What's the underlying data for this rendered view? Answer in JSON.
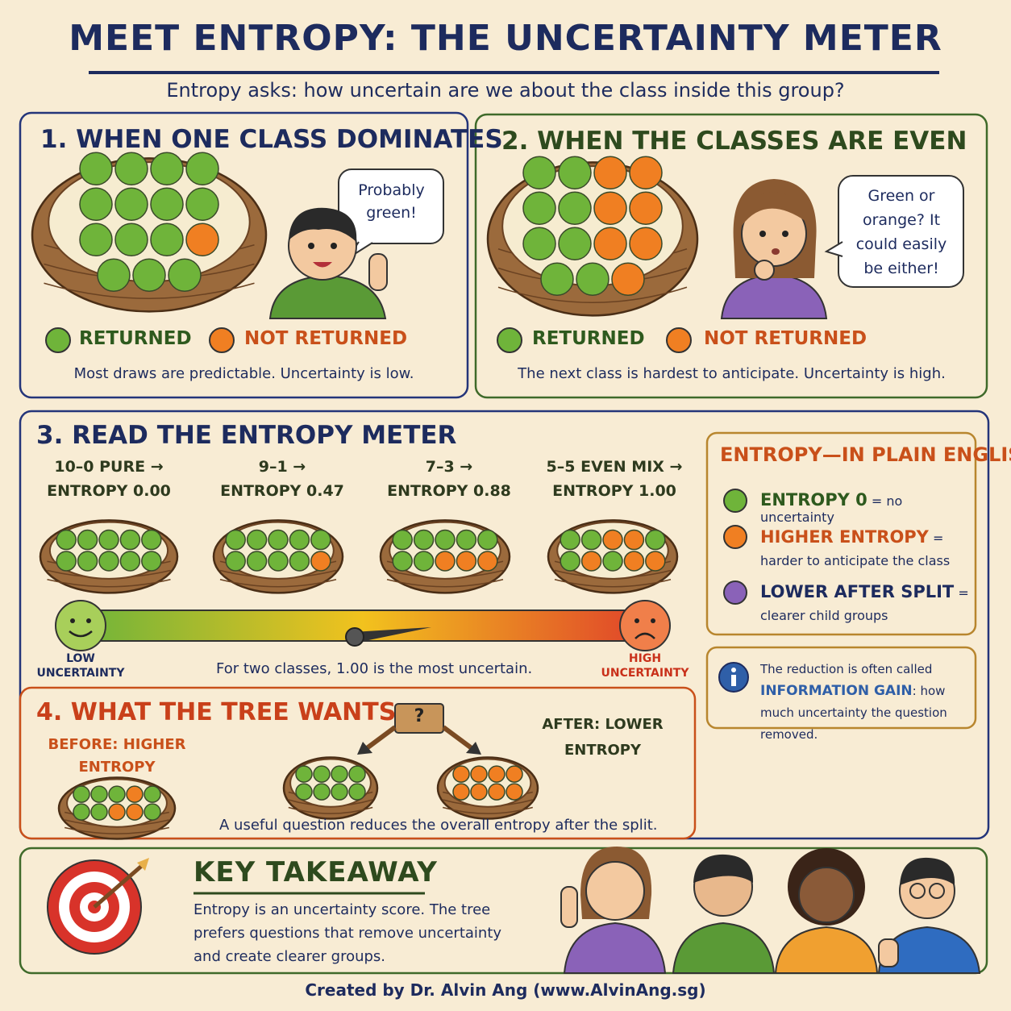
{
  "header": {
    "title": "MEET ENTROPY: THE UNCERTAINTY METER",
    "subtitle": "Entropy asks: how uncertain are we about the class inside this group?"
  },
  "panel1": {
    "title": "1. WHEN ONE CLASS DOMINATES",
    "bubble": "Probably green!",
    "legend": [
      "RETURNED",
      "NOT RETURNED"
    ],
    "caption": "Most draws are predictable. Uncertainty is low."
  },
  "panel2": {
    "title": "2. WHEN THE CLASSES ARE EVEN",
    "bubble": "Green or orange? It could easily be either!",
    "legend": [
      "RETURNED",
      "NOT RETURNED"
    ],
    "caption": "The next class is hardest to anticipate. Uncertainty is high."
  },
  "panel3": {
    "title": "3. READ THE ENTROPY METER",
    "baskets": [
      {
        "mix": "10–0 PURE →",
        "entropy": "ENTROPY 0.00"
      },
      {
        "mix": "9–1 →",
        "entropy": "ENTROPY 0.47"
      },
      {
        "mix": "7–3 →",
        "entropy": "ENTROPY 0.88"
      },
      {
        "mix": "5–5 EVEN MIX →",
        "entropy": "ENTROPY 1.00"
      }
    ],
    "low": "LOW UNCERTAINTY",
    "high": "HIGH UNCERTAINTY",
    "note": "For two classes, 1.00 is the most uncertain."
  },
  "plain_english": {
    "title": "ENTROPY—IN PLAIN ENGLISH",
    "items": [
      {
        "term": "ENTROPY 0",
        "text": "= no uncertainty"
      },
      {
        "term": "HIGHER ENTROPY",
        "text": "= harder to anticipate the class"
      },
      {
        "term": "LOWER AFTER SPLIT",
        "text": "= clearer child groups"
      }
    ]
  },
  "info": {
    "before": "The reduction is often called",
    "term": "INFORMATION GAIN",
    "after": ": how much uncertainty the question removed."
  },
  "panel4": {
    "title": "4. WHAT THE TREE WANTS",
    "question": "?",
    "before": "BEFORE: HIGHER ENTROPY",
    "after": "AFTER: LOWER ENTROPY",
    "caption": "A useful question reduces the overall entropy after the split."
  },
  "takeaway": {
    "title": "KEY TAKEAWAY",
    "text": "Entropy is an uncertainty score. The tree prefers questions that remove uncertainty and create clearer groups."
  },
  "footer": "Created by Dr. Alvin Ang (www.AlvinAng.sg)"
}
